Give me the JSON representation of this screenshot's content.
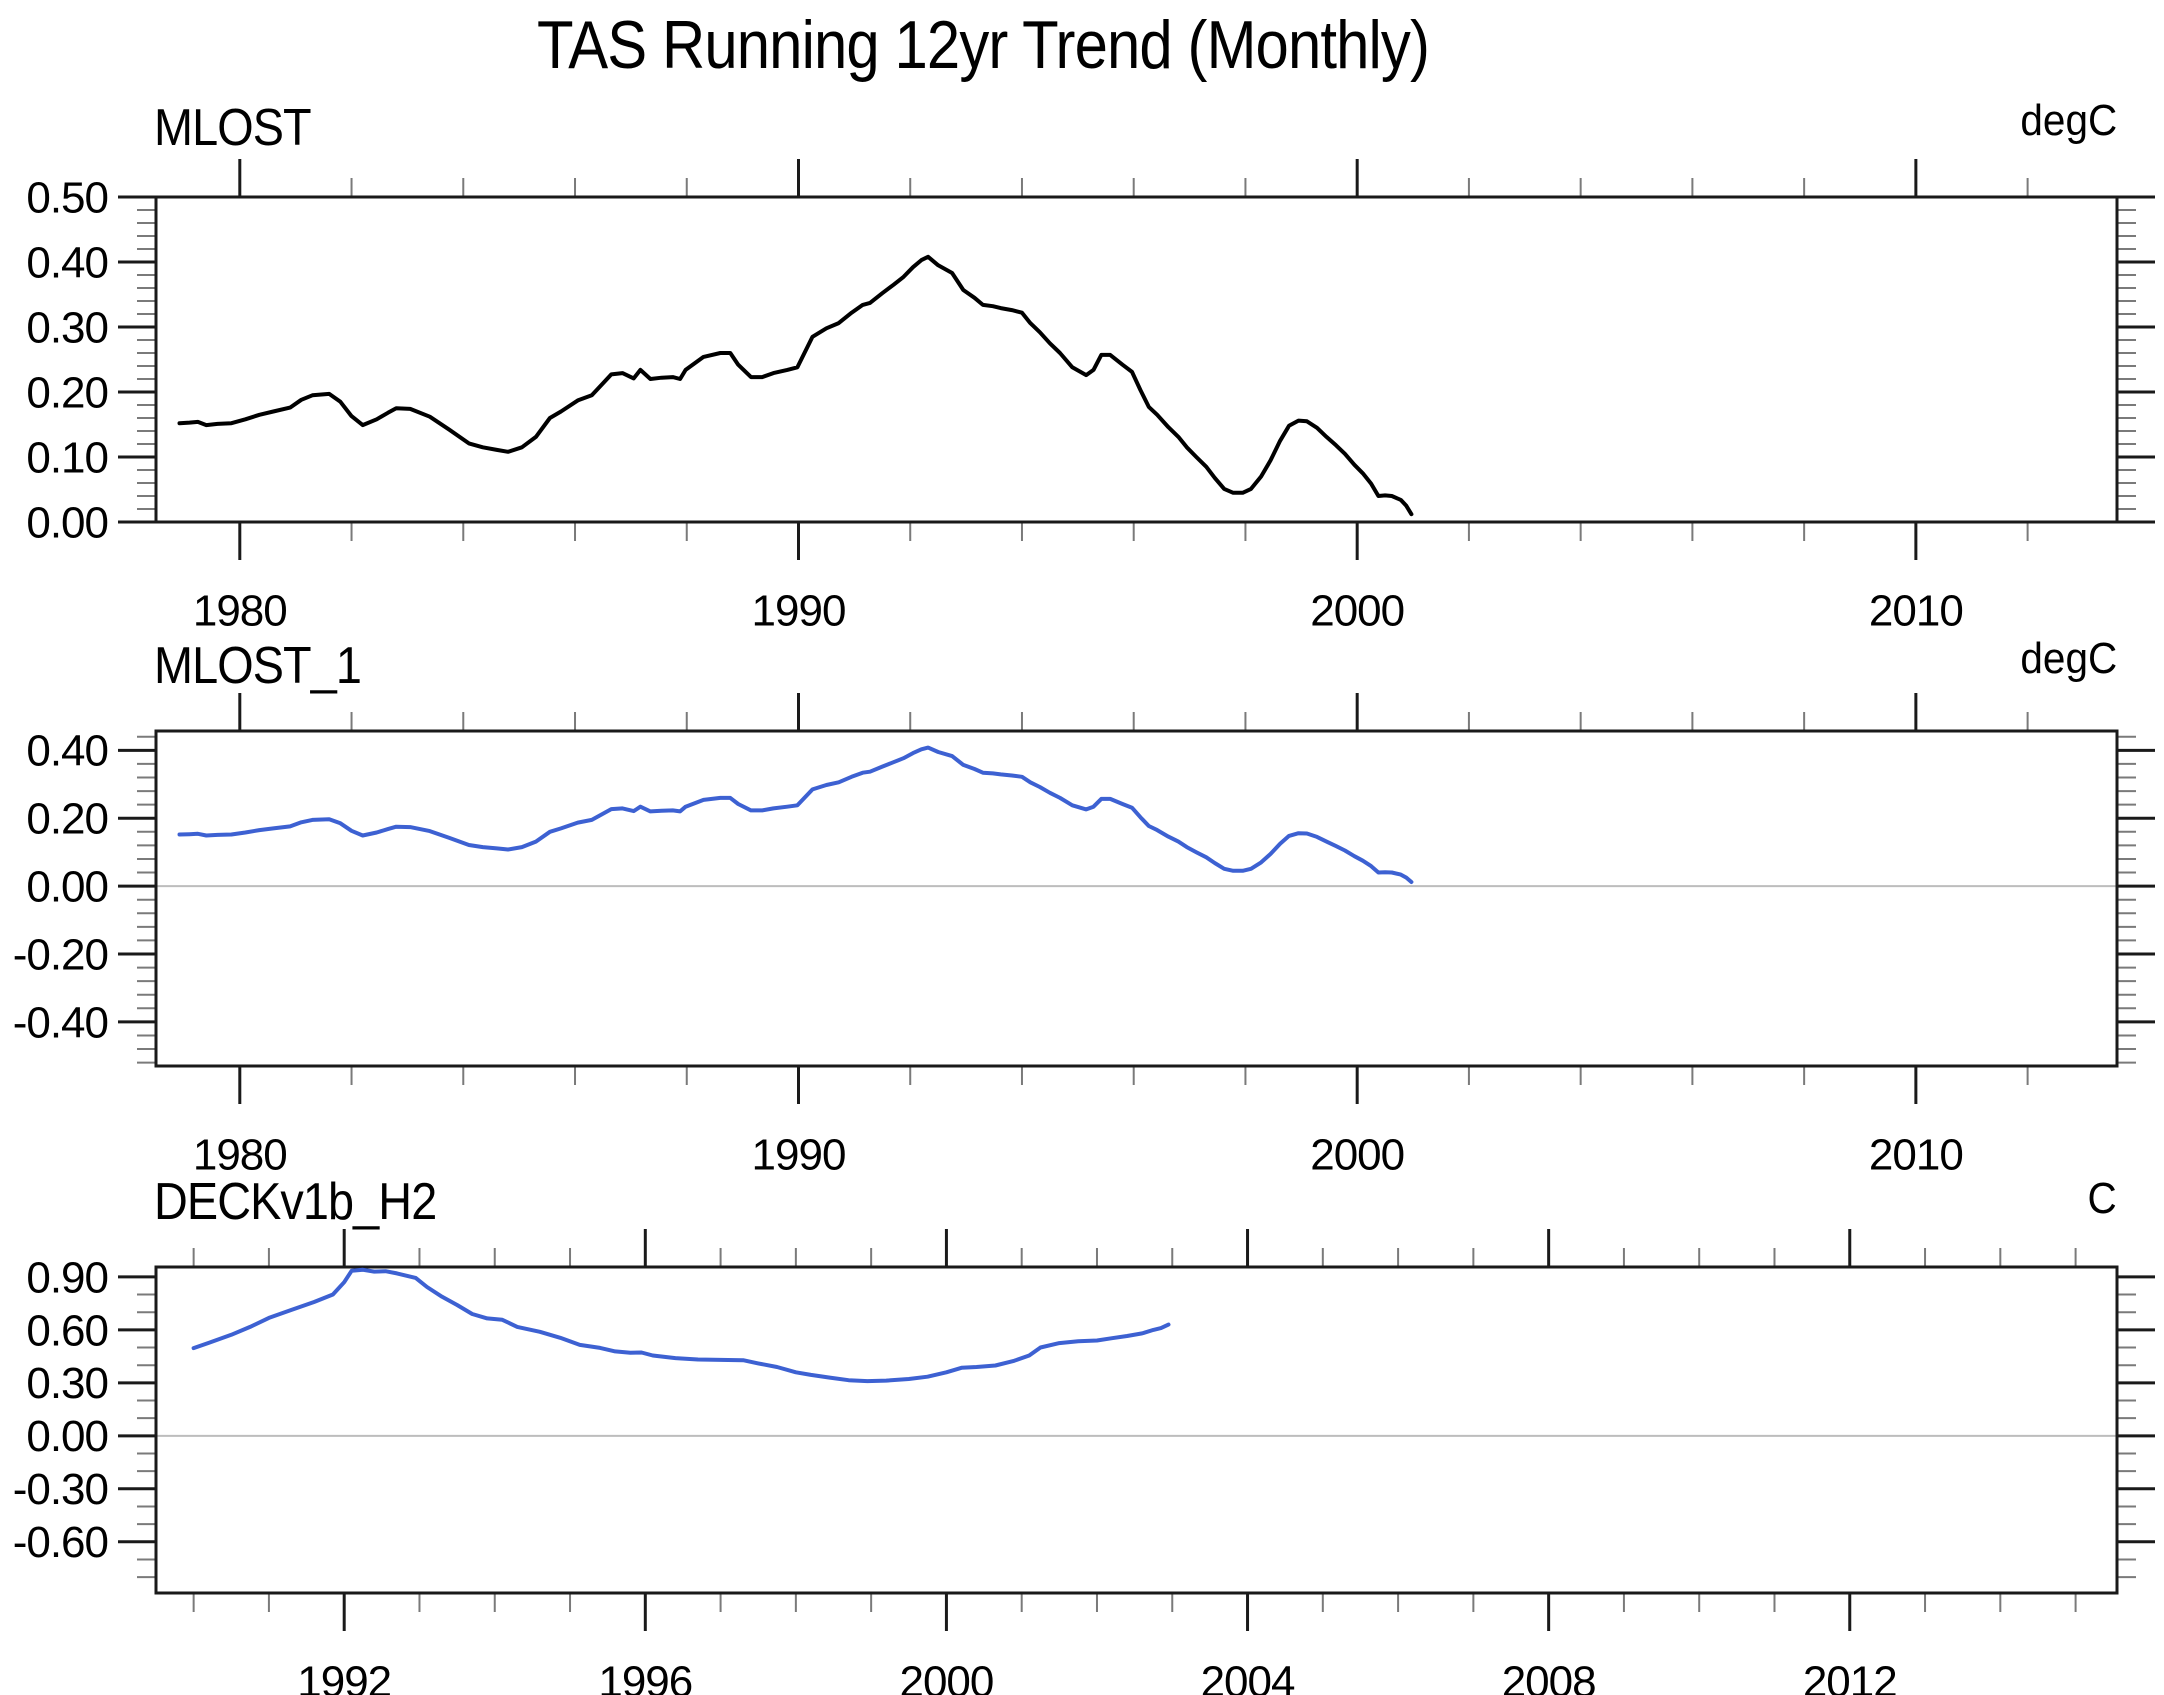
{
  "page_title": "TAS Running 12yr Trend (Monthly)",
  "colors": {
    "background": "#ffffff",
    "frame": "#1a1a1a",
    "major_tick": "#1a1a1a",
    "minor_tick": "#7a7a7a",
    "zero_line": "#bdbdbd",
    "black_series": "#000000",
    "blue_series": "#3d61d2"
  },
  "chart_data": [
    {
      "type": "line",
      "title": "MLOST",
      "unit_label": "degC",
      "legend_position": "none",
      "grid": false,
      "zero_line": false,
      "xlim": [
        1978.5,
        2013.6
      ],
      "ylim": [
        0.0,
        0.5
      ],
      "x_major_ticks": [
        1980,
        1990,
        2000,
        2010
      ],
      "x_tick_labels": [
        "1980",
        "1990",
        "2000",
        "2010"
      ],
      "x_minor_step": 2,
      "y_major_ticks": [
        0.0,
        0.1,
        0.2,
        0.3,
        0.4,
        0.5
      ],
      "y_tick_labels": [
        "0.00",
        "0.10",
        "0.20",
        "0.30",
        "0.40",
        "0.50"
      ],
      "y_minor_step": 0.02,
      "line_color": "#000000",
      "series": [
        {
          "name": "MLOST",
          "x": [
            1978.92,
            1979.1,
            1979.25,
            1979.4,
            1979.6,
            1979.85,
            1980.1,
            1980.35,
            1980.6,
            1980.9,
            1981.1,
            1981.3,
            1981.6,
            1981.8,
            1982.0,
            1982.2,
            1982.45,
            1982.65,
            1982.8,
            1983.05,
            1983.4,
            1983.75,
            1984.1,
            1984.35,
            1984.6,
            1984.8,
            1985.05,
            1985.3,
            1985.55,
            1985.75,
            1986.05,
            1986.3,
            1986.65,
            1986.85,
            1987.05,
            1987.17,
            1987.35,
            1987.55,
            1987.75,
            1987.88,
            1987.98,
            1988.3,
            1988.6,
            1988.78,
            1988.92,
            1989.15,
            1989.35,
            1989.55,
            1989.8,
            1989.98,
            1990.25,
            1990.5,
            1990.72,
            1990.95,
            1991.15,
            1991.28,
            1991.5,
            1991.7,
            1991.88,
            1992.05,
            1992.2,
            1992.32,
            1992.5,
            1992.75,
            1992.95,
            1993.15,
            1993.3,
            1993.48,
            1993.62,
            1993.82,
            1994.0,
            1994.15,
            1994.32,
            1994.5,
            1994.68,
            1994.9,
            1995.15,
            1995.28,
            1995.42,
            1995.58,
            1995.8,
            1995.97,
            1996.12,
            1996.27,
            1996.42,
            1996.62,
            1996.8,
            1996.95,
            1997.12,
            1997.3,
            1997.45,
            1997.62,
            1997.78,
            1997.95,
            1998.1,
            1998.28,
            1998.45,
            1998.62,
            1998.78,
            1998.95,
            1999.1,
            1999.28,
            1999.45,
            1999.62,
            1999.78,
            1999.95,
            2000.1,
            2000.25,
            2000.38,
            2000.5,
            2000.62,
            2000.78,
            2000.88,
            2000.97
          ],
          "y": [
            0.152,
            0.153,
            0.154,
            0.149,
            0.151,
            0.152,
            0.158,
            0.165,
            0.17,
            0.176,
            0.188,
            0.195,
            0.197,
            0.185,
            0.163,
            0.149,
            0.158,
            0.168,
            0.175,
            0.174,
            0.162,
            0.142,
            0.121,
            0.115,
            0.111,
            0.108,
            0.115,
            0.131,
            0.16,
            0.17,
            0.187,
            0.195,
            0.227,
            0.229,
            0.221,
            0.234,
            0.22,
            0.222,
            0.223,
            0.22,
            0.234,
            0.254,
            0.26,
            0.26,
            0.242,
            0.223,
            0.223,
            0.229,
            0.234,
            0.238,
            0.285,
            0.298,
            0.306,
            0.322,
            0.334,
            0.337,
            0.352,
            0.365,
            0.377,
            0.392,
            0.403,
            0.408,
            0.395,
            0.383,
            0.357,
            0.345,
            0.334,
            0.332,
            0.329,
            0.326,
            0.322,
            0.306,
            0.292,
            0.275,
            0.26,
            0.238,
            0.226,
            0.234,
            0.257,
            0.257,
            0.242,
            0.231,
            0.203,
            0.177,
            0.165,
            0.146,
            0.131,
            0.115,
            0.1,
            0.085,
            0.068,
            0.051,
            0.045,
            0.045,
            0.051,
            0.07,
            0.095,
            0.125,
            0.148,
            0.156,
            0.155,
            0.145,
            0.131,
            0.118,
            0.105,
            0.088,
            0.075,
            0.059,
            0.04,
            0.041,
            0.04,
            0.034,
            0.025,
            0.012
          ]
        }
      ]
    },
    {
      "type": "line",
      "title": "MLOST_1",
      "unit_label": "degC",
      "legend_position": "none",
      "grid": false,
      "zero_line": true,
      "xlim": [
        1978.5,
        2013.6
      ],
      "ylim": [
        -0.53,
        0.457
      ],
      "x_major_ticks": [
        1980,
        1990,
        2000,
        2010
      ],
      "x_tick_labels": [
        "1980",
        "1990",
        "2000",
        "2010"
      ],
      "x_minor_step": 2,
      "y_major_ticks": [
        -0.4,
        -0.2,
        0.0,
        0.2,
        0.4
      ],
      "y_tick_labels": [
        "-0.40",
        "-0.20",
        "0.00",
        "0.20",
        "0.40"
      ],
      "y_minor_step": 0.04,
      "line_color": "#3d61d2",
      "series": [
        {
          "name": "MLOST_1",
          "x": [
            1978.92,
            1979.1,
            1979.25,
            1979.4,
            1979.6,
            1979.85,
            1980.1,
            1980.35,
            1980.6,
            1980.9,
            1981.1,
            1981.3,
            1981.6,
            1981.8,
            1982.0,
            1982.2,
            1982.45,
            1982.65,
            1982.8,
            1983.05,
            1983.4,
            1983.75,
            1984.1,
            1984.35,
            1984.6,
            1984.8,
            1985.05,
            1985.3,
            1985.55,
            1985.75,
            1986.05,
            1986.3,
            1986.65,
            1986.85,
            1987.05,
            1987.17,
            1987.35,
            1987.55,
            1987.75,
            1987.88,
            1987.98,
            1988.3,
            1988.6,
            1988.78,
            1988.92,
            1989.15,
            1989.35,
            1989.55,
            1989.8,
            1989.98,
            1990.25,
            1990.5,
            1990.72,
            1990.95,
            1991.15,
            1991.28,
            1991.5,
            1991.7,
            1991.88,
            1992.05,
            1992.2,
            1992.32,
            1992.5,
            1992.75,
            1992.95,
            1993.15,
            1993.3,
            1993.48,
            1993.62,
            1993.82,
            1994.0,
            1994.15,
            1994.32,
            1994.5,
            1994.68,
            1994.9,
            1995.15,
            1995.28,
            1995.42,
            1995.58,
            1995.8,
            1995.97,
            1996.12,
            1996.27,
            1996.42,
            1996.62,
            1996.8,
            1996.95,
            1997.12,
            1997.3,
            1997.45,
            1997.62,
            1997.78,
            1997.95,
            1998.1,
            1998.28,
            1998.45,
            1998.62,
            1998.78,
            1998.95,
            1999.1,
            1999.28,
            1999.45,
            1999.62,
            1999.78,
            1999.95,
            2000.1,
            2000.25,
            2000.38,
            2000.5,
            2000.62,
            2000.78,
            2000.88,
            2000.97
          ],
          "y": [
            0.152,
            0.153,
            0.154,
            0.149,
            0.151,
            0.152,
            0.158,
            0.165,
            0.17,
            0.176,
            0.188,
            0.195,
            0.197,
            0.185,
            0.163,
            0.149,
            0.158,
            0.168,
            0.175,
            0.174,
            0.162,
            0.142,
            0.121,
            0.115,
            0.111,
            0.108,
            0.115,
            0.131,
            0.16,
            0.17,
            0.187,
            0.195,
            0.227,
            0.229,
            0.221,
            0.234,
            0.22,
            0.222,
            0.223,
            0.22,
            0.234,
            0.254,
            0.26,
            0.26,
            0.242,
            0.223,
            0.223,
            0.229,
            0.234,
            0.238,
            0.285,
            0.298,
            0.306,
            0.322,
            0.334,
            0.337,
            0.352,
            0.365,
            0.377,
            0.392,
            0.403,
            0.408,
            0.395,
            0.383,
            0.357,
            0.345,
            0.334,
            0.332,
            0.329,
            0.326,
            0.322,
            0.306,
            0.292,
            0.275,
            0.26,
            0.238,
            0.226,
            0.234,
            0.257,
            0.257,
            0.242,
            0.231,
            0.203,
            0.177,
            0.165,
            0.146,
            0.131,
            0.115,
            0.1,
            0.085,
            0.068,
            0.051,
            0.045,
            0.045,
            0.051,
            0.07,
            0.095,
            0.125,
            0.148,
            0.156,
            0.155,
            0.145,
            0.131,
            0.118,
            0.105,
            0.088,
            0.075,
            0.059,
            0.04,
            0.041,
            0.04,
            0.034,
            0.025,
            0.012
          ]
        }
      ]
    },
    {
      "type": "line",
      "title": "DECKv1b_H2",
      "unit_label": "C",
      "legend_position": "none",
      "grid": false,
      "zero_line": true,
      "xlim": [
        1989.5,
        2015.55
      ],
      "ylim": [
        -0.89,
        0.956
      ],
      "x_major_ticks": [
        1992,
        1996,
        2000,
        2004,
        2008,
        2012
      ],
      "x_tick_labels": [
        "1992",
        "1996",
        "2000",
        "2004",
        "2008",
        "2012"
      ],
      "x_minor_step": 1,
      "y_major_ticks": [
        -0.6,
        -0.3,
        0.0,
        0.3,
        0.6,
        0.9
      ],
      "y_tick_labels": [
        "-0.60",
        "-0.30",
        "0.00",
        "0.30",
        "0.60",
        "0.90"
      ],
      "y_minor_step": 0.1,
      "line_color": "#3d61d2",
      "series": [
        {
          "name": "DECKv1b_H2",
          "x": [
            1990.0,
            1990.2,
            1990.5,
            1990.75,
            1991.0,
            1991.3,
            1991.6,
            1991.85,
            1992.0,
            1992.1,
            1992.25,
            1992.4,
            1992.55,
            1992.7,
            1992.95,
            1993.1,
            1993.3,
            1993.5,
            1993.7,
            1993.9,
            1994.1,
            1994.3,
            1994.6,
            1994.87,
            1995.13,
            1995.4,
            1995.6,
            1995.8,
            1995.95,
            1996.1,
            1996.4,
            1996.7,
            1997.0,
            1997.3,
            1997.5,
            1997.75,
            1998.0,
            1998.2,
            1998.45,
            1998.7,
            1998.95,
            1999.2,
            1999.5,
            1999.75,
            2000.0,
            2000.2,
            2000.4,
            2000.65,
            2000.9,
            2001.1,
            2001.25,
            2001.5,
            2001.75,
            2002.0,
            2002.2,
            2002.4,
            2002.6,
            2002.75,
            2002.85,
            2002.95
          ],
          "y": [
            0.497,
            0.526,
            0.572,
            0.617,
            0.668,
            0.713,
            0.758,
            0.8,
            0.87,
            0.935,
            0.94,
            0.93,
            0.932,
            0.92,
            0.894,
            0.843,
            0.787,
            0.741,
            0.69,
            0.665,
            0.657,
            0.617,
            0.589,
            0.555,
            0.515,
            0.498,
            0.478,
            0.47,
            0.472,
            0.455,
            0.44,
            0.432,
            0.43,
            0.428,
            0.41,
            0.39,
            0.36,
            0.345,
            0.33,
            0.315,
            0.31,
            0.313,
            0.322,
            0.335,
            0.36,
            0.385,
            0.39,
            0.398,
            0.425,
            0.455,
            0.5,
            0.525,
            0.535,
            0.54,
            0.553,
            0.565,
            0.58,
            0.6,
            0.61,
            0.63
          ]
        }
      ]
    }
  ]
}
